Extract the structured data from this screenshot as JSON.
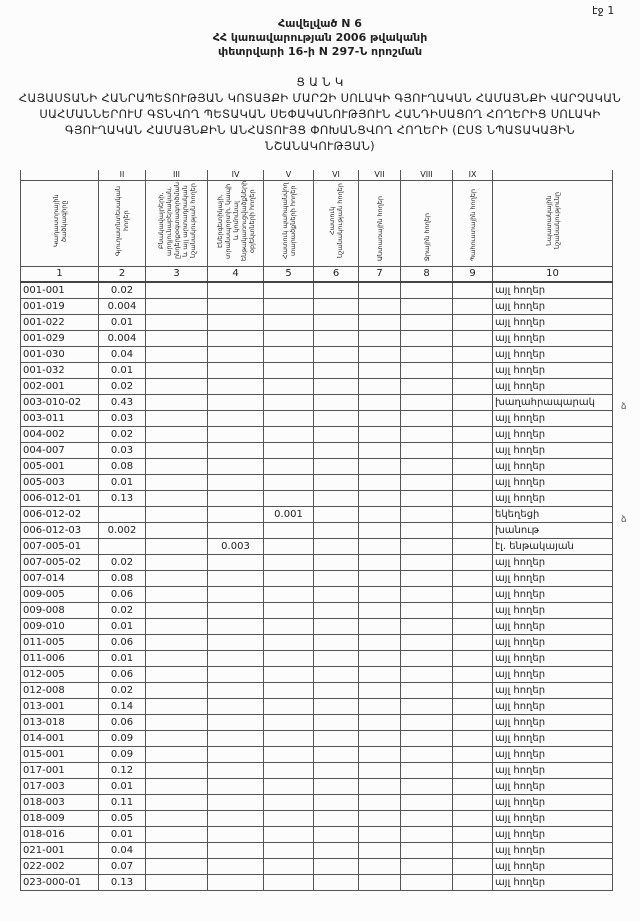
{
  "page_number": "էջ 1",
  "annex": [
    "Հավելված N 6",
    "ՀՀ կառավարության 2006 թվականի",
    "փետրվարի 16-ի N 297-Ն որոշման"
  ],
  "list_label": "Ց Ա Ն Կ",
  "title_lines": [
    "ՀԱՅԱՍՏԱՆԻ ՀԱՆՐԱՊԵՏՈՒԹՅԱՆ ԿՈՏԱՅՔԻ ՄԱՐԶԻ ՍՈԼԱԿԻ ԳՅՈՒՂԱԿԱՆ ՀԱՄԱՅՆՔԻ ՎԱՐՉԱԿԱՆ",
    "ՍԱՀՄԱՆՆԵՐՈՒՄ ԳՏՆՎՈՂ ՊԵՏԱԿԱՆ ՍԵՓԱԿԱՆՈՒԹՅՈՒՆ ՀԱՆԴԻՍԱՑՈՂ ՀՈՂԵՐԻՑ ՍՈԼԱԿԻ",
    "ԳՅՈՒՂԱԿԱՆ ՀԱՄԱՅՆՔԻՆ ԱՆՀԱՏՈՒՅՑ ՓՈԽԱՆՑՎՈՂ ՀՈՂԵՐԻ (ԸՍՏ ՆՊԱՏԱԿԱՅԻՆ",
    "ՆՇԱՆԱԿՈՒԹՅԱՆ)"
  ],
  "table": {
    "roman": [
      "",
      "II",
      "III",
      "IV",
      "V",
      "VI",
      "VII",
      "VIII",
      "IX",
      ""
    ],
    "headers": [
      "Կադաստրային ծածկագիրը",
      "Գյուղատնտեսական հողեր",
      "Բնակավայրերի, արդյունաբերական, ընդերքօգտագործման և այլ արտադրական նշանակության հողեր",
      "Էներգետիկայի, տրանսպորտի, կապի և կոմունալ ենթակառուցվածքների օբյեկտների հողեր",
      "Հատուկ պահպանվող տարածքների հողեր",
      "Հատուկ նշանակության հողեր",
      "Անտառային հողեր",
      "Ջրային հողեր",
      "Պահուստային հողեր",
      "Նպատակային նշանակությունը"
    ],
    "column_numbers": [
      "1",
      "2",
      "3",
      "4",
      "5",
      "6",
      "7",
      "8",
      "9",
      "10"
    ],
    "rows": [
      {
        "code": "001-001",
        "c2": "0.02",
        "desc": "այլ հողեր"
      },
      {
        "code": "001-019",
        "c2": "0.004",
        "desc": "այլ հողեր"
      },
      {
        "code": "001-022",
        "c2": "0.01",
        "desc": "այլ հողեր"
      },
      {
        "code": "001-029",
        "c2": "0.004",
        "desc": "այլ հողեր"
      },
      {
        "code": "001-030",
        "c2": "0.04",
        "desc": "այլ հողեր"
      },
      {
        "code": "001-032",
        "c2": "0.01",
        "desc": "այլ հողեր"
      },
      {
        "code": "002-001",
        "c2": "0.02",
        "desc": "այլ հողեր"
      },
      {
        "code": "003-010-02",
        "c2": "0.43",
        "desc": "խաղահրապարակ",
        "mark": "ձ"
      },
      {
        "code": "003-011",
        "c2": "0.03",
        "desc": "այլ հողեր"
      },
      {
        "code": "004-002",
        "c2": "0.02",
        "desc": "այլ հողեր"
      },
      {
        "code": "004-007",
        "c2": "0.03",
        "desc": "այլ հողեր"
      },
      {
        "code": "005-001",
        "c2": "0.08",
        "desc": "այլ հողեր"
      },
      {
        "code": "005-003",
        "c2": "0.01",
        "desc": "այլ հողեր"
      },
      {
        "code": "006-012-01",
        "c2": "0.13",
        "desc": "այլ հողեր"
      },
      {
        "code": "006-012-02",
        "c5": "0.001",
        "desc": "եկեղեցի",
        "mark": "ձ"
      },
      {
        "code": "006-012-03",
        "c2": "0.002",
        "desc": "խանութ"
      },
      {
        "code": "007-005-01",
        "c4": "0.003",
        "desc": "էլ. ենթակայան"
      },
      {
        "code": "007-005-02",
        "c2": "0.02",
        "desc": "այլ հողեր"
      },
      {
        "code": "007-014",
        "c2": "0.08",
        "desc": "այլ հողեր"
      },
      {
        "code": "009-005",
        "c2": "0.06",
        "desc": "այլ հողեր"
      },
      {
        "code": "009-008",
        "c2": "0.02",
        "desc": "այլ հողեր"
      },
      {
        "code": "009-010",
        "c2": "0.01",
        "desc": "այլ հողեր"
      },
      {
        "code": "011-005",
        "c2": "0.06",
        "desc": "այլ հողեր"
      },
      {
        "code": "011-006",
        "c2": "0.01",
        "desc": "այլ հողեր"
      },
      {
        "code": "012-005",
        "c2": "0.06",
        "desc": "այլ հողեր"
      },
      {
        "code": "012-008",
        "c2": "0.02",
        "desc": "այլ հողեր"
      },
      {
        "code": "013-001",
        "c2": "0.14",
        "desc": "այլ հողեր"
      },
      {
        "code": "013-018",
        "c2": "0.06",
        "desc": "այլ հողեր"
      },
      {
        "code": "014-001",
        "c2": "0.09",
        "desc": "այլ հողեր"
      },
      {
        "code": "015-001",
        "c2": "0.09",
        "desc": "այլ հողեր"
      },
      {
        "code": "017-001",
        "c2": "0.12",
        "desc": "այլ հողեր"
      },
      {
        "code": "017-003",
        "c2": "0.01",
        "desc": "այլ հողեր"
      },
      {
        "code": "018-003",
        "c2": "0.11",
        "desc": "այլ հողեր"
      },
      {
        "code": "018-009",
        "c2": "0.05",
        "desc": "այլ հողեր"
      },
      {
        "code": "018-016",
        "c2": "0.01",
        "desc": "այլ հողեր"
      },
      {
        "code": "021-001",
        "c2": "0.04",
        "desc": "այլ հողեր"
      },
      {
        "code": "022-002",
        "c2": "0.07",
        "desc": "այլ հողեր"
      },
      {
        "code": "023-000-01",
        "c2": "0.13",
        "desc": "այլ հողեր"
      }
    ]
  }
}
